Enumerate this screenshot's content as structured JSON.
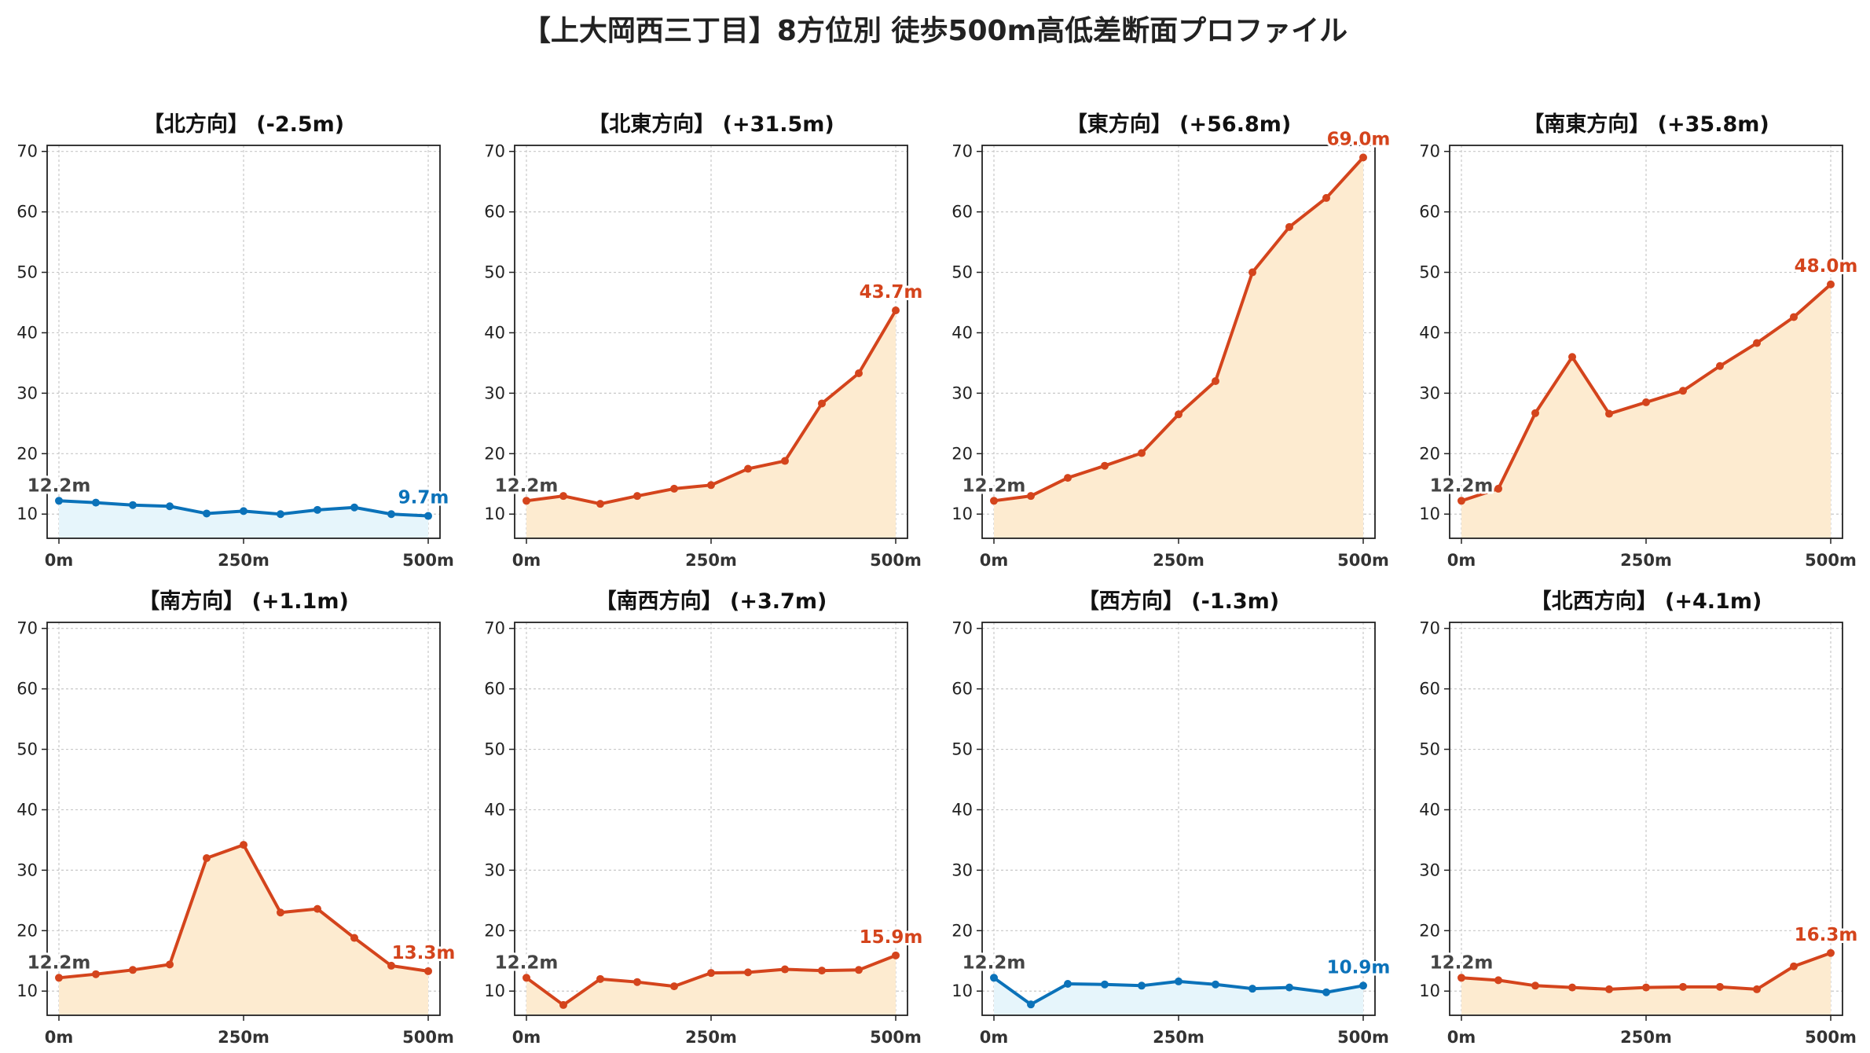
{
  "title": "【上大岡西三丁目】8方位別 徒歩500m高低差断面プロファイル",
  "colors": {
    "up_line": "#d4441c",
    "up_fill": "#fdebd0",
    "down_line": "#0b72b9",
    "down_fill": "#e6f5fb",
    "grid": "#c8c8c8",
    "axis": "#222222",
    "start_label": "#444444"
  },
  "chart_data": [
    {
      "type": "line",
      "title": "【北方向】 (-2.5m)",
      "trend": "down",
      "x": [
        0,
        50,
        100,
        150,
        200,
        250,
        300,
        350,
        400,
        450,
        500
      ],
      "values": [
        12.2,
        11.9,
        11.5,
        11.3,
        10.1,
        10.5,
        10.0,
        10.7,
        11.1,
        10.0,
        9.7
      ],
      "start_label": "12.2m",
      "end_label": "9.7m",
      "xticks": [
        "0m",
        "250m",
        "500m"
      ],
      "yticks": [
        10,
        20,
        30,
        40,
        50,
        60,
        70
      ],
      "ylim": [
        6,
        71
      ],
      "grid": true
    },
    {
      "type": "line",
      "title": "【北東方向】 (+31.5m)",
      "trend": "up",
      "x": [
        0,
        50,
        100,
        150,
        200,
        250,
        300,
        350,
        400,
        450,
        500
      ],
      "values": [
        12.2,
        13.0,
        11.7,
        13.0,
        14.2,
        14.8,
        17.5,
        18.8,
        28.3,
        33.3,
        43.7
      ],
      "start_label": "12.2m",
      "end_label": "43.7m",
      "xticks": [
        "0m",
        "250m",
        "500m"
      ],
      "yticks": [
        10,
        20,
        30,
        40,
        50,
        60,
        70
      ],
      "ylim": [
        6,
        71
      ],
      "grid": true
    },
    {
      "type": "line",
      "title": "【東方向】 (+56.8m)",
      "trend": "up",
      "x": [
        0,
        50,
        100,
        150,
        200,
        250,
        300,
        350,
        400,
        450,
        500
      ],
      "values": [
        12.2,
        13.0,
        16.0,
        18.0,
        20.1,
        26.5,
        32.0,
        50.0,
        57.5,
        62.3,
        69.0
      ],
      "start_label": "12.2m",
      "end_label": "69.0m",
      "xticks": [
        "0m",
        "250m",
        "500m"
      ],
      "yticks": [
        10,
        20,
        30,
        40,
        50,
        60,
        70
      ],
      "ylim": [
        6,
        71
      ],
      "grid": true
    },
    {
      "type": "line",
      "title": "【南東方向】 (+35.8m)",
      "trend": "up",
      "x": [
        0,
        50,
        100,
        150,
        200,
        250,
        300,
        350,
        400,
        450,
        500
      ],
      "values": [
        12.2,
        14.2,
        26.7,
        36.0,
        26.6,
        28.5,
        30.4,
        34.5,
        38.3,
        42.6,
        48.0
      ],
      "start_label": "12.2m",
      "end_label": "48.0m",
      "xticks": [
        "0m",
        "250m",
        "500m"
      ],
      "yticks": [
        10,
        20,
        30,
        40,
        50,
        60,
        70
      ],
      "ylim": [
        6,
        71
      ],
      "grid": true
    },
    {
      "type": "line",
      "title": "【南方向】 (+1.1m)",
      "trend": "up",
      "x": [
        0,
        50,
        100,
        150,
        200,
        250,
        300,
        350,
        400,
        450,
        500
      ],
      "values": [
        12.2,
        12.8,
        13.5,
        14.4,
        32.0,
        34.2,
        23.0,
        23.6,
        18.8,
        14.2,
        13.3
      ],
      "start_label": "12.2m",
      "end_label": "13.3m",
      "xticks": [
        "0m",
        "250m",
        "500m"
      ],
      "yticks": [
        10,
        20,
        30,
        40,
        50,
        60,
        70
      ],
      "ylim": [
        6,
        71
      ],
      "grid": true
    },
    {
      "type": "line",
      "title": "【南西方向】 (+3.7m)",
      "trend": "up",
      "x": [
        0,
        50,
        100,
        150,
        200,
        250,
        300,
        350,
        400,
        450,
        500
      ],
      "values": [
        12.2,
        7.7,
        12.0,
        11.5,
        10.8,
        13.0,
        13.1,
        13.6,
        13.4,
        13.5,
        15.9
      ],
      "start_label": "12.2m",
      "end_label": "15.9m",
      "xticks": [
        "0m",
        "250m",
        "500m"
      ],
      "yticks": [
        10,
        20,
        30,
        40,
        50,
        60,
        70
      ],
      "ylim": [
        6,
        71
      ],
      "grid": true
    },
    {
      "type": "line",
      "title": "【西方向】 (-1.3m)",
      "trend": "down",
      "x": [
        0,
        50,
        100,
        150,
        200,
        250,
        300,
        350,
        400,
        450,
        500
      ],
      "values": [
        12.2,
        7.8,
        11.2,
        11.1,
        10.9,
        11.6,
        11.1,
        10.4,
        10.6,
        9.8,
        10.9
      ],
      "start_label": "12.2m",
      "end_label": "10.9m",
      "xticks": [
        "0m",
        "250m",
        "500m"
      ],
      "yticks": [
        10,
        20,
        30,
        40,
        50,
        60,
        70
      ],
      "ylim": [
        6,
        71
      ],
      "grid": true
    },
    {
      "type": "line",
      "title": "【北西方向】 (+4.1m)",
      "trend": "up",
      "x": [
        0,
        50,
        100,
        150,
        200,
        250,
        300,
        350,
        400,
        450,
        500
      ],
      "values": [
        12.2,
        11.8,
        10.9,
        10.6,
        10.3,
        10.6,
        10.7,
        10.7,
        10.3,
        14.1,
        16.3
      ],
      "start_label": "12.2m",
      "end_label": "16.3m",
      "xticks": [
        "0m",
        "250m",
        "500m"
      ],
      "yticks": [
        10,
        20,
        30,
        40,
        50,
        60,
        70
      ],
      "ylim": [
        6,
        71
      ],
      "grid": true
    }
  ]
}
